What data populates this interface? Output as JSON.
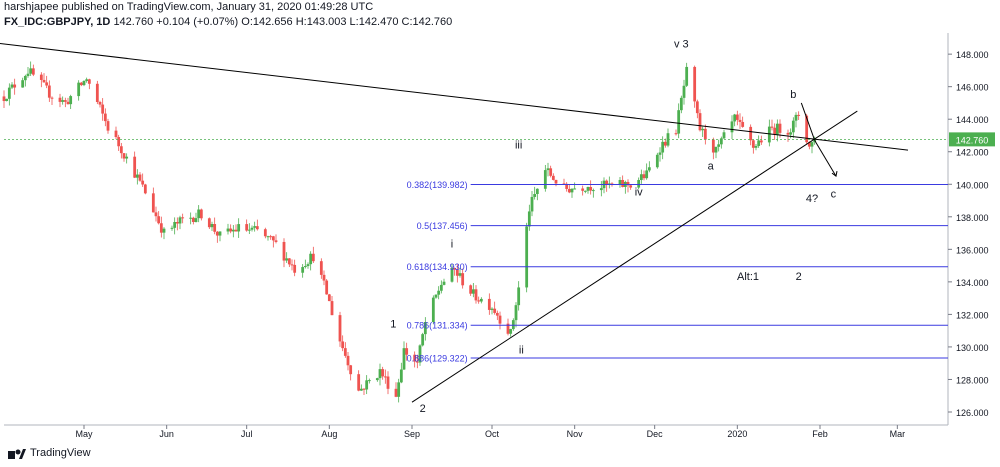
{
  "header": {
    "line1": "harshjapee published on TradingView.com, January 31, 2020 01:49:28 UTC",
    "symbol": "FX_IDC:GBPJPY, 1D",
    "last": "142.760",
    "change": "+0.104 (+0.07%)",
    "ohlc": "O:142.656 H:143.003 L:142.470 C:142.760"
  },
  "footer": {
    "brand": "TradingView"
  },
  "colors": {
    "up": "#26a69a",
    "upGreen": "#4caf50",
    "down": "#ef5350",
    "fib": "#3a3ae0",
    "price_badge": "#4caf50",
    "trend": "#000000"
  },
  "chart_data": {
    "type": "candlestick",
    "title": "",
    "xlabel": "",
    "ylabel": "",
    "ylim": [
      125.2,
      149.3
    ],
    "y_ticks": [
      "126.000",
      "128.000",
      "130.000",
      "132.000",
      "134.000",
      "136.000",
      "138.000",
      "140.000",
      "142.000",
      "144.000",
      "146.000",
      "148.000"
    ],
    "x_ticks": [
      "May",
      "Jun",
      "Jul",
      "Aug",
      "Sep",
      "Oct",
      "Nov",
      "Dec",
      "2020",
      "Feb",
      "Mar"
    ],
    "x_range": [
      "2019-04-01",
      "2020-03-20"
    ],
    "last_price": "142.760",
    "last_price_value": 142.76,
    "anchors": [
      [
        "2019-04-01",
        145.4
      ],
      [
        "2019-04-10",
        147.0
      ],
      [
        "2019-04-18",
        145.6
      ],
      [
        "2019-04-24",
        145.0
      ],
      [
        "2019-05-02",
        146.5
      ],
      [
        "2019-05-10",
        143.5
      ],
      [
        "2019-05-16",
        141.9
      ],
      [
        "2019-05-24",
        139.5
      ],
      [
        "2019-05-31",
        137.0
      ],
      [
        "2019-06-07",
        137.8
      ],
      [
        "2019-06-14",
        138.2
      ],
      [
        "2019-06-21",
        136.8
      ],
      [
        "2019-06-28",
        137.3
      ],
      [
        "2019-07-05",
        137.1
      ],
      [
        "2019-07-12",
        136.3
      ],
      [
        "2019-07-19",
        134.8
      ],
      [
        "2019-07-26",
        135.6
      ],
      [
        "2019-07-31",
        133.3
      ],
      [
        "2019-08-05",
        130.4
      ],
      [
        "2019-08-12",
        127.3
      ],
      [
        "2019-08-20",
        128.5
      ],
      [
        "2019-08-26",
        127.0
      ],
      [
        "2019-08-29",
        129.8
      ],
      [
        "2019-09-03",
        129.0
      ],
      [
        "2019-09-06",
        131.5
      ],
      [
        "2019-09-12",
        133.9
      ],
      [
        "2019-09-17",
        134.7
      ],
      [
        "2019-09-24",
        133.2
      ],
      [
        "2019-10-01",
        132.5
      ],
      [
        "2019-10-08",
        130.8
      ],
      [
        "2019-10-11",
        133.6
      ],
      [
        "2019-10-15",
        138.5
      ],
      [
        "2019-10-21",
        140.9
      ],
      [
        "2019-10-28",
        139.7
      ],
      [
        "2019-11-05",
        139.9
      ],
      [
        "2019-11-15",
        139.9
      ],
      [
        "2019-11-22",
        140.0
      ],
      [
        "2019-11-28",
        140.6
      ],
      [
        "2019-12-03",
        142.3
      ],
      [
        "2019-12-09",
        143.4
      ],
      [
        "2019-12-13",
        146.9
      ],
      [
        "2019-12-18",
        143.4
      ],
      [
        "2019-12-24",
        142.0
      ],
      [
        "2019-12-31",
        144.0
      ],
      [
        "2020-01-07",
        142.3
      ],
      [
        "2020-01-14",
        143.4
      ],
      [
        "2020-01-21",
        143.4
      ],
      [
        "2020-01-24",
        144.3
      ],
      [
        "2020-01-28",
        142.3
      ],
      [
        "2020-01-30",
        142.76
      ]
    ],
    "fib_levels": [
      {
        "label": "0.382(139.982)",
        "value": 139.982
      },
      {
        "label": "0.5(137.456)",
        "value": 137.456
      },
      {
        "label": "0.618(134.930)",
        "value": 134.93
      },
      {
        "label": "0.786(131.334)",
        "value": 131.334
      },
      {
        "label": "0.886(129.322)",
        "value": 129.322
      }
    ],
    "trendlines": [
      {
        "from": [
          "2019-03-28",
          148.7
        ],
        "to": [
          "2020-03-05",
          142.1
        ]
      },
      {
        "from": [
          "2019-09-01",
          126.6
        ],
        "to": [
          "2020-02-15",
          144.5
        ]
      }
    ],
    "annotations": [
      {
        "text": "1",
        "date": "2019-08-25",
        "price": 131.2
      },
      {
        "text": "2",
        "date": "2019-09-05",
        "price": 126.0
      },
      {
        "text": "i",
        "date": "2019-09-16",
        "price": 136.1
      },
      {
        "text": "ii",
        "date": "2019-10-12",
        "price": 129.6
      },
      {
        "text": "iii",
        "date": "2019-10-11",
        "price": 142.2
      },
      {
        "text": "iv",
        "date": "2019-11-25",
        "price": 139.3
      },
      {
        "text": "v 3",
        "date": "2019-12-11",
        "price": 148.4
      },
      {
        "text": "a",
        "date": "2019-12-22",
        "price": 140.9
      },
      {
        "text": "b",
        "date": "2020-01-22",
        "price": 145.3
      },
      {
        "text": "4?",
        "date": "2020-01-29",
        "price": 138.9
      },
      {
        "text": "c",
        "date": "2020-02-06",
        "price": 139.2
      },
      {
        "text": "Alt:1",
        "date": "2020-01-05",
        "price": 134.1
      },
      {
        "text": "2",
        "date": "2020-01-24",
        "price": 134.1
      }
    ]
  }
}
